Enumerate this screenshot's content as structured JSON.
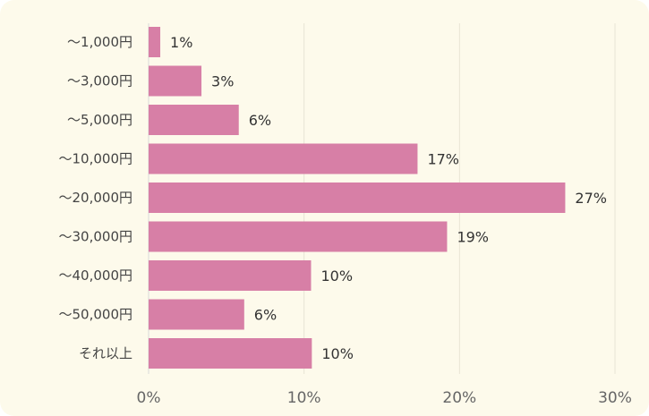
{
  "colors": {
    "background": "#fdfaeb",
    "bar": "#d77fa6",
    "grid": "#e8e4d4",
    "axis": "#d9d9d9"
  },
  "chart_data": {
    "type": "bar",
    "orientation": "horizontal",
    "categories": [
      "～1,000円",
      "～3,000円",
      "～5,000円",
      "～10,000円",
      "～20,000円",
      "～30,000円",
      "～40,000円",
      "～50,000円",
      "それ以上"
    ],
    "values": [
      0.75,
      3.4,
      5.8,
      17.3,
      26.8,
      19.2,
      10.45,
      6.15,
      10.5
    ],
    "value_labels": [
      "1%",
      "3%",
      "6%",
      "17%",
      "27%",
      "19%",
      "10%",
      "6%",
      "10%"
    ],
    "xlim": [
      0,
      30
    ],
    "x_ticks": [
      0,
      10,
      20,
      30
    ],
    "x_tick_labels": [
      "0%",
      "10%",
      "20%",
      "30%"
    ],
    "title": "",
    "xlabel": "",
    "ylabel": "",
    "grid": true,
    "legend": "none"
  }
}
